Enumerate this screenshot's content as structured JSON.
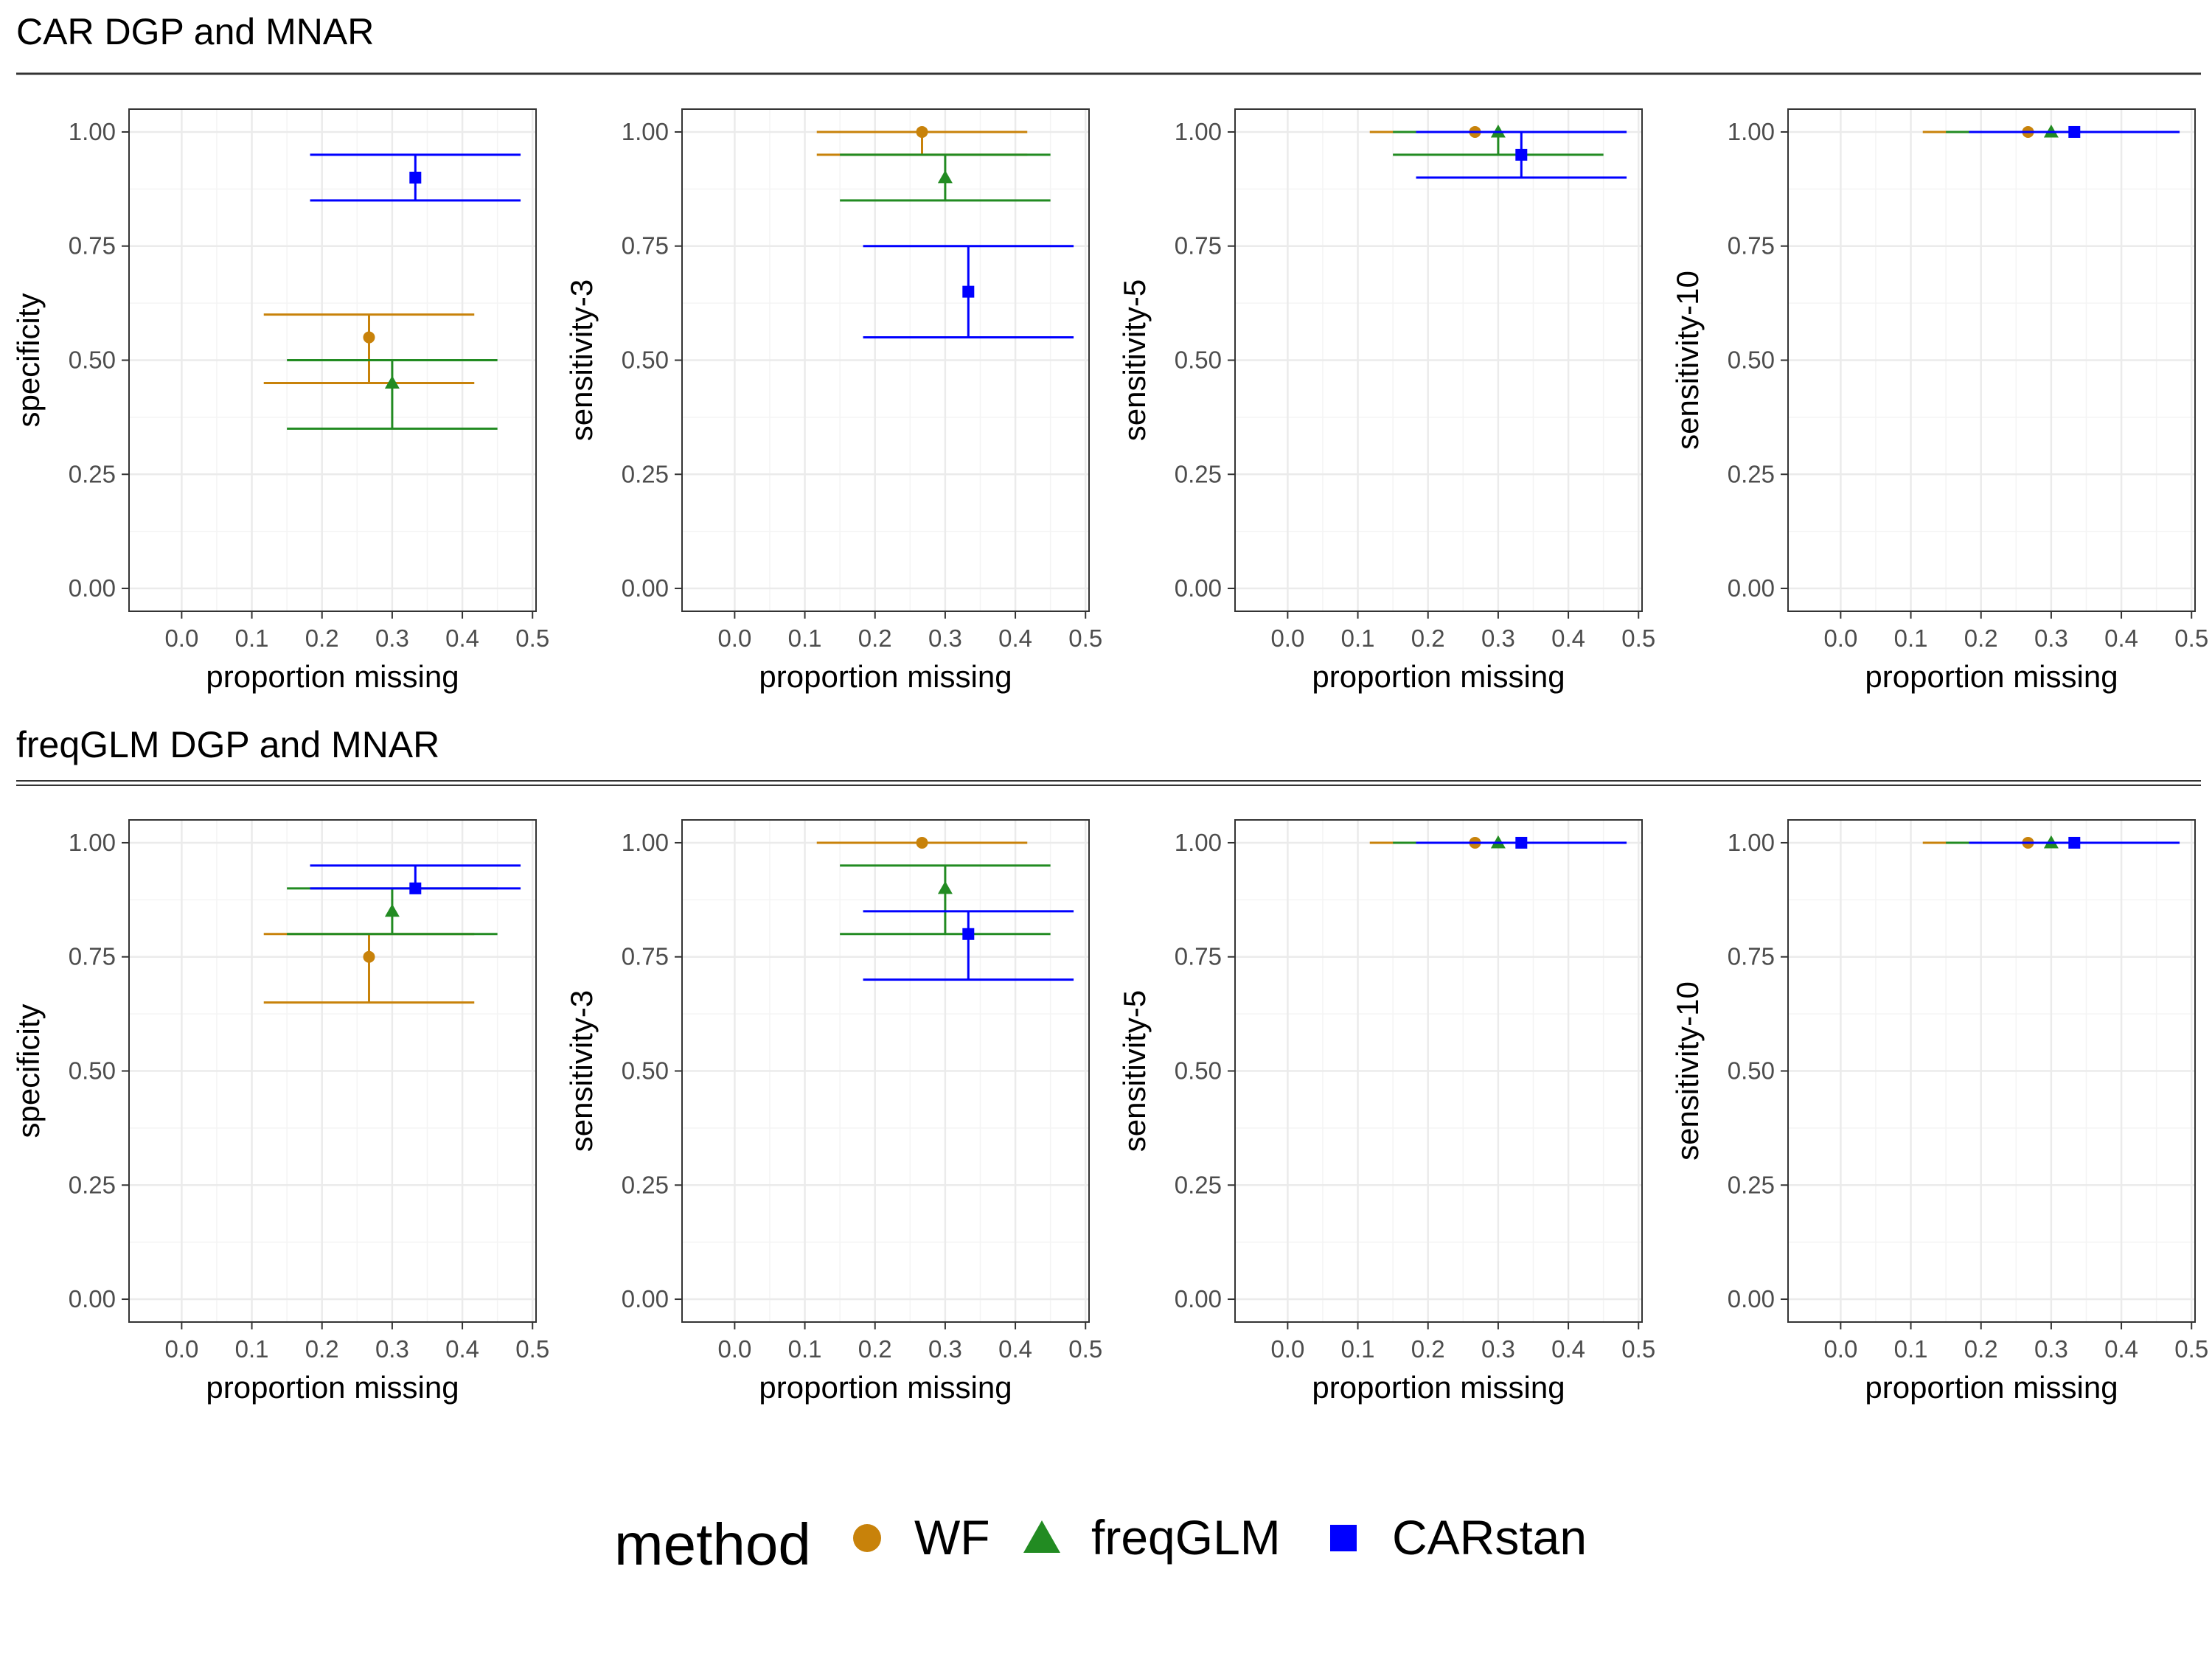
{
  "colors": {
    "WF": "#c8820a",
    "freqGLM": "#228b22",
    "CARstan": "#0000ff",
    "grid_major": "#ebebeb",
    "grid_minor": "#f4f4f4",
    "axis_text": "#4d4d4d"
  },
  "legend": {
    "title": "method",
    "position": "bottom",
    "entries": [
      {
        "key": "WF",
        "label": "WF",
        "shape": "circle"
      },
      {
        "key": "freqGLM",
        "label": "freqGLM",
        "shape": "triangle"
      },
      {
        "key": "CARstan",
        "label": "CARstan",
        "shape": "square"
      }
    ]
  },
  "chart_data": {
    "type": "scatter",
    "grid": true,
    "xlim": [
      -0.075,
      0.505
    ],
    "ylim": [
      -0.05,
      1.05
    ],
    "x_ticks": [
      "0.0",
      "0.1",
      "0.2",
      "0.3",
      "0.4",
      "0.5"
    ],
    "y_ticks": [
      "0.00",
      "0.25",
      "0.50",
      "0.75",
      "1.00"
    ],
    "xlabel": "proportion missing",
    "rows": [
      {
        "title": "CAR DGP and MNAR",
        "panels": [
          {
            "ylabel": "specificity",
            "series": [
              {
                "method": "WF",
                "x": 0.267,
                "x_low": 0.117,
                "x_high": 0.417,
                "y": 0.55,
                "y_low": 0.45,
                "y_high": 0.6
              },
              {
                "method": "freqGLM",
                "x": 0.3,
                "x_low": 0.15,
                "x_high": 0.45,
                "y": 0.45,
                "y_low": 0.35,
                "y_high": 0.5
              },
              {
                "method": "CARstan",
                "x": 0.333,
                "x_low": 0.183,
                "x_high": 0.483,
                "y": 0.9,
                "y_low": 0.85,
                "y_high": 0.95
              }
            ]
          },
          {
            "ylabel": "sensitivity-3",
            "series": [
              {
                "method": "WF",
                "x": 0.267,
                "x_low": 0.117,
                "x_high": 0.417,
                "y": 1.0,
                "y_low": 0.95,
                "y_high": 1.0
              },
              {
                "method": "freqGLM",
                "x": 0.3,
                "x_low": 0.15,
                "x_high": 0.45,
                "y": 0.9,
                "y_low": 0.85,
                "y_high": 0.95
              },
              {
                "method": "CARstan",
                "x": 0.333,
                "x_low": 0.183,
                "x_high": 0.483,
                "y": 0.65,
                "y_low": 0.55,
                "y_high": 0.75
              }
            ]
          },
          {
            "ylabel": "sensitivity-5",
            "series": [
              {
                "method": "WF",
                "x": 0.267,
                "x_low": 0.117,
                "x_high": 0.417,
                "y": 1.0,
                "y_low": 1.0,
                "y_high": 1.0
              },
              {
                "method": "freqGLM",
                "x": 0.3,
                "x_low": 0.15,
                "x_high": 0.45,
                "y": 1.0,
                "y_low": 0.95,
                "y_high": 1.0
              },
              {
                "method": "CARstan",
                "x": 0.333,
                "x_low": 0.183,
                "x_high": 0.483,
                "y": 0.95,
                "y_low": 0.9,
                "y_high": 1.0
              }
            ]
          },
          {
            "ylabel": "sensitivity-10",
            "series": [
              {
                "method": "WF",
                "x": 0.267,
                "x_low": 0.117,
                "x_high": 0.417,
                "y": 1.0,
                "y_low": 1.0,
                "y_high": 1.0
              },
              {
                "method": "freqGLM",
                "x": 0.3,
                "x_low": 0.15,
                "x_high": 0.45,
                "y": 1.0,
                "y_low": 1.0,
                "y_high": 1.0
              },
              {
                "method": "CARstan",
                "x": 0.333,
                "x_low": 0.183,
                "x_high": 0.483,
                "y": 1.0,
                "y_low": 1.0,
                "y_high": 1.0
              }
            ]
          }
        ]
      },
      {
        "title": "freqGLM DGP and MNAR",
        "panels": [
          {
            "ylabel": "specificity",
            "series": [
              {
                "method": "WF",
                "x": 0.267,
                "x_low": 0.117,
                "x_high": 0.417,
                "y": 0.75,
                "y_low": 0.65,
                "y_high": 0.8
              },
              {
                "method": "freqGLM",
                "x": 0.3,
                "x_low": 0.15,
                "x_high": 0.45,
                "y": 0.85,
                "y_low": 0.8,
                "y_high": 0.9
              },
              {
                "method": "CARstan",
                "x": 0.333,
                "x_low": 0.183,
                "x_high": 0.483,
                "y": 0.9,
                "y_low": 0.9,
                "y_high": 0.95
              }
            ]
          },
          {
            "ylabel": "sensitivity-3",
            "series": [
              {
                "method": "WF",
                "x": 0.267,
                "x_low": 0.117,
                "x_high": 0.417,
                "y": 1.0,
                "y_low": 1.0,
                "y_high": 1.0
              },
              {
                "method": "freqGLM",
                "x": 0.3,
                "x_low": 0.15,
                "x_high": 0.45,
                "y": 0.9,
                "y_low": 0.8,
                "y_high": 0.95
              },
              {
                "method": "CARstan",
                "x": 0.333,
                "x_low": 0.183,
                "x_high": 0.483,
                "y": 0.8,
                "y_low": 0.7,
                "y_high": 0.85
              }
            ]
          },
          {
            "ylabel": "sensitivity-5",
            "series": [
              {
                "method": "WF",
                "x": 0.267,
                "x_low": 0.117,
                "x_high": 0.417,
                "y": 1.0,
                "y_low": 1.0,
                "y_high": 1.0
              },
              {
                "method": "freqGLM",
                "x": 0.3,
                "x_low": 0.15,
                "x_high": 0.45,
                "y": 1.0,
                "y_low": 1.0,
                "y_high": 1.0
              },
              {
                "method": "CARstan",
                "x": 0.333,
                "x_low": 0.183,
                "x_high": 0.483,
                "y": 1.0,
                "y_low": 1.0,
                "y_high": 1.0
              }
            ]
          },
          {
            "ylabel": "sensitivity-10",
            "series": [
              {
                "method": "WF",
                "x": 0.267,
                "x_low": 0.117,
                "x_high": 0.417,
                "y": 1.0,
                "y_low": 1.0,
                "y_high": 1.0
              },
              {
                "method": "freqGLM",
                "x": 0.3,
                "x_low": 0.15,
                "x_high": 0.45,
                "y": 1.0,
                "y_low": 1.0,
                "y_high": 1.0
              },
              {
                "method": "CARstan",
                "x": 0.333,
                "x_low": 0.183,
                "x_high": 0.483,
                "y": 1.0,
                "y_low": 1.0,
                "y_high": 1.0
              }
            ]
          }
        ]
      }
    ]
  }
}
